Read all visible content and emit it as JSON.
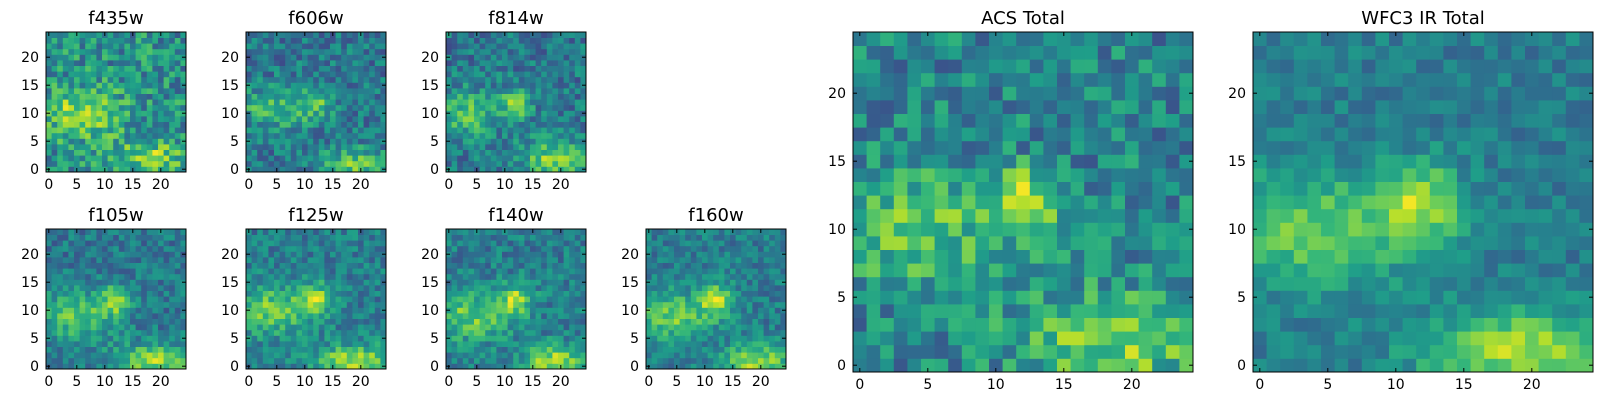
{
  "chart_data": [
    {
      "type": "heatmap",
      "title": "f435w",
      "x_ticks": [
        0,
        5,
        10,
        15,
        20
      ],
      "y_ticks": [
        0,
        5,
        10,
        15,
        20
      ],
      "xlim": [
        -0.5,
        24.5
      ],
      "ylim": [
        -0.5,
        24.5
      ],
      "grid_size": [
        25,
        25
      ],
      "colormap": "viridis",
      "features": [
        {
          "x": 6,
          "y": 10,
          "sx": 5,
          "sy": 3,
          "amp": 0.35
        },
        {
          "x": 18,
          "y": 2,
          "sx": 5,
          "sy": 2,
          "amp": 0.3
        }
      ],
      "base": 0.5,
      "noise": 0.45
    },
    {
      "type": "heatmap",
      "title": "f606w",
      "x_ticks": [
        0,
        5,
        10,
        15,
        20
      ],
      "y_ticks": [
        0,
        5,
        10,
        15,
        20
      ],
      "xlim": [
        -0.5,
        24.5
      ],
      "ylim": [
        -0.5,
        24.5
      ],
      "grid_size": [
        25,
        25
      ],
      "colormap": "viridis",
      "features": [
        {
          "x": 5,
          "y": 11,
          "sx": 5,
          "sy": 2.5,
          "amp": 0.3
        },
        {
          "x": 12,
          "y": 12,
          "sx": 2,
          "sy": 2,
          "amp": 0.25
        },
        {
          "x": 19,
          "y": 1,
          "sx": 4,
          "sy": 2,
          "amp": 0.35
        }
      ],
      "base": 0.4,
      "noise": 0.35
    },
    {
      "type": "heatmap",
      "title": "f814w",
      "x_ticks": [
        0,
        5,
        10,
        15,
        20
      ],
      "y_ticks": [
        0,
        5,
        10,
        15,
        20
      ],
      "xlim": [
        -0.5,
        24.5
      ],
      "ylim": [
        -0.5,
        24.5
      ],
      "grid_size": [
        25,
        25
      ],
      "colormap": "viridis",
      "features": [
        {
          "x": 3,
          "y": 10,
          "sx": 4,
          "sy": 3,
          "amp": 0.3
        },
        {
          "x": 12,
          "y": 12,
          "sx": 1.8,
          "sy": 1.8,
          "amp": 0.45
        },
        {
          "x": 19,
          "y": 2,
          "sx": 4,
          "sy": 2.5,
          "amp": 0.4
        }
      ],
      "base": 0.4,
      "noise": 0.35
    },
    {
      "type": "heatmap",
      "title": "f105w",
      "x_ticks": [
        0,
        5,
        10,
        15,
        20
      ],
      "y_ticks": [
        0,
        5,
        10,
        15,
        20
      ],
      "xlim": [
        -0.5,
        24.5
      ],
      "ylim": [
        -0.5,
        24.5
      ],
      "grid_size": [
        25,
        25
      ],
      "colormap": "viridis",
      "features": [
        {
          "x": 5,
          "y": 9,
          "sx": 5,
          "sy": 3,
          "amp": 0.35
        },
        {
          "x": 12,
          "y": 12,
          "sx": 1.8,
          "sy": 1.8,
          "amp": 0.4
        },
        {
          "x": 19,
          "y": 1,
          "sx": 5,
          "sy": 2,
          "amp": 0.45
        }
      ],
      "base": 0.4,
      "noise": 0.3
    },
    {
      "type": "heatmap",
      "title": "f125w",
      "x_ticks": [
        0,
        5,
        10,
        15,
        20
      ],
      "y_ticks": [
        0,
        5,
        10,
        15,
        20
      ],
      "xlim": [
        -0.5,
        24.5
      ],
      "ylim": [
        -0.5,
        24.5
      ],
      "grid_size": [
        25,
        25
      ],
      "colormap": "viridis",
      "features": [
        {
          "x": 4,
          "y": 10,
          "sx": 5,
          "sy": 3,
          "amp": 0.35
        },
        {
          "x": 12,
          "y": 12,
          "sx": 2,
          "sy": 2,
          "amp": 0.4
        },
        {
          "x": 19,
          "y": 1,
          "sx": 5,
          "sy": 2,
          "amp": 0.45
        }
      ],
      "base": 0.42,
      "noise": 0.3
    },
    {
      "type": "heatmap",
      "title": "f140w",
      "x_ticks": [
        0,
        5,
        10,
        15,
        20
      ],
      "y_ticks": [
        0,
        5,
        10,
        15,
        20
      ],
      "xlim": [
        -0.5,
        24.5
      ],
      "ylim": [
        -0.5,
        24.5
      ],
      "grid_size": [
        25,
        25
      ],
      "colormap": "viridis",
      "features": [
        {
          "x": 4,
          "y": 9,
          "sx": 5,
          "sy": 3,
          "amp": 0.35
        },
        {
          "x": 12,
          "y": 12,
          "sx": 2,
          "sy": 2,
          "amp": 0.4
        },
        {
          "x": 19,
          "y": 1,
          "sx": 4,
          "sy": 2,
          "amp": 0.45
        }
      ],
      "base": 0.42,
      "noise": 0.3
    },
    {
      "type": "heatmap",
      "title": "f160w",
      "x_ticks": [
        0,
        5,
        10,
        15,
        20
      ],
      "y_ticks": [
        0,
        5,
        10,
        15,
        20
      ],
      "xlim": [
        -0.5,
        24.5
      ],
      "ylim": [
        -0.5,
        24.5
      ],
      "grid_size": [
        25,
        25
      ],
      "colormap": "viridis",
      "features": [
        {
          "x": 4,
          "y": 9,
          "sx": 5,
          "sy": 3,
          "amp": 0.35
        },
        {
          "x": 12,
          "y": 12,
          "sx": 2,
          "sy": 2,
          "amp": 0.45
        },
        {
          "x": 19,
          "y": 1,
          "sx": 4,
          "sy": 2,
          "amp": 0.45
        }
      ],
      "base": 0.42,
      "noise": 0.28
    },
    {
      "type": "heatmap",
      "title": "ACS Total",
      "x_ticks": [
        0,
        5,
        10,
        15,
        20
      ],
      "y_ticks": [
        0,
        5,
        10,
        15,
        20
      ],
      "xlim": [
        -0.5,
        24.5
      ],
      "ylim": [
        -0.5,
        24.5
      ],
      "grid_size": [
        25,
        25
      ],
      "colormap": "viridis",
      "features": [
        {
          "x": 4,
          "y": 10,
          "sx": 5,
          "sy": 3,
          "amp": 0.3
        },
        {
          "x": 12,
          "y": 12,
          "sx": 1.5,
          "sy": 1.5,
          "amp": 0.5
        },
        {
          "x": 19,
          "y": 2,
          "sx": 5,
          "sy": 2.5,
          "amp": 0.35
        }
      ],
      "base": 0.45,
      "noise": 0.4
    },
    {
      "type": "heatmap",
      "title": "WFC3 IR Total",
      "x_ticks": [
        0,
        5,
        10,
        15,
        20
      ],
      "y_ticks": [
        0,
        5,
        10,
        15,
        20
      ],
      "xlim": [
        -0.5,
        24.5
      ],
      "ylim": [
        -0.5,
        24.5
      ],
      "grid_size": [
        25,
        25
      ],
      "colormap": "viridis",
      "features": [
        {
          "x": 4,
          "y": 10,
          "sx": 5,
          "sy": 3,
          "amp": 0.35
        },
        {
          "x": 12,
          "y": 12,
          "sx": 2,
          "sy": 2,
          "amp": 0.4
        },
        {
          "x": 19,
          "y": 1,
          "sx": 5,
          "sy": 2,
          "amp": 0.45
        }
      ],
      "base": 0.42,
      "noise": 0.22
    }
  ]
}
